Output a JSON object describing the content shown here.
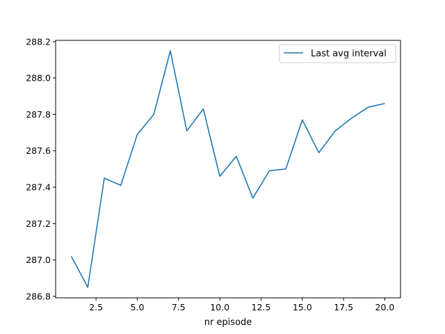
{
  "chart_data": {
    "type": "line",
    "title": "",
    "xlabel": "nr episode",
    "ylabel": "",
    "xlim": [
      0.05,
      20.95
    ],
    "ylim": [
      286.792,
      288.207
    ],
    "x_ticks": [
      2.5,
      5.0,
      7.5,
      10.0,
      12.5,
      15.0,
      17.5,
      20.0
    ],
    "x_tick_labels": [
      "2.5",
      "5.0",
      "7.5",
      "10.0",
      "12.5",
      "15.0",
      "17.5",
      "20.0"
    ],
    "y_ticks": [
      286.8,
      287.0,
      287.2,
      287.4,
      287.6,
      287.8,
      288.0,
      288.2
    ],
    "y_tick_labels": [
      "286.8",
      "287.0",
      "287.2",
      "287.4",
      "287.6",
      "287.8",
      "288.0",
      "288.2"
    ],
    "grid": false,
    "legend_position": "top-right",
    "series": [
      {
        "name": "Last avg interval",
        "color": "#1f77b4",
        "x": [
          1,
          2,
          3,
          4,
          5,
          6,
          7,
          8,
          9,
          10,
          11,
          12,
          13,
          14,
          15,
          16,
          17,
          18,
          19,
          20
        ],
        "y": [
          287.02,
          286.85,
          287.45,
          287.41,
          287.69,
          287.8,
          288.15,
          287.71,
          287.83,
          287.46,
          287.57,
          287.34,
          287.49,
          287.5,
          287.77,
          287.59,
          287.71,
          287.78,
          287.84,
          287.86
        ]
      }
    ]
  }
}
